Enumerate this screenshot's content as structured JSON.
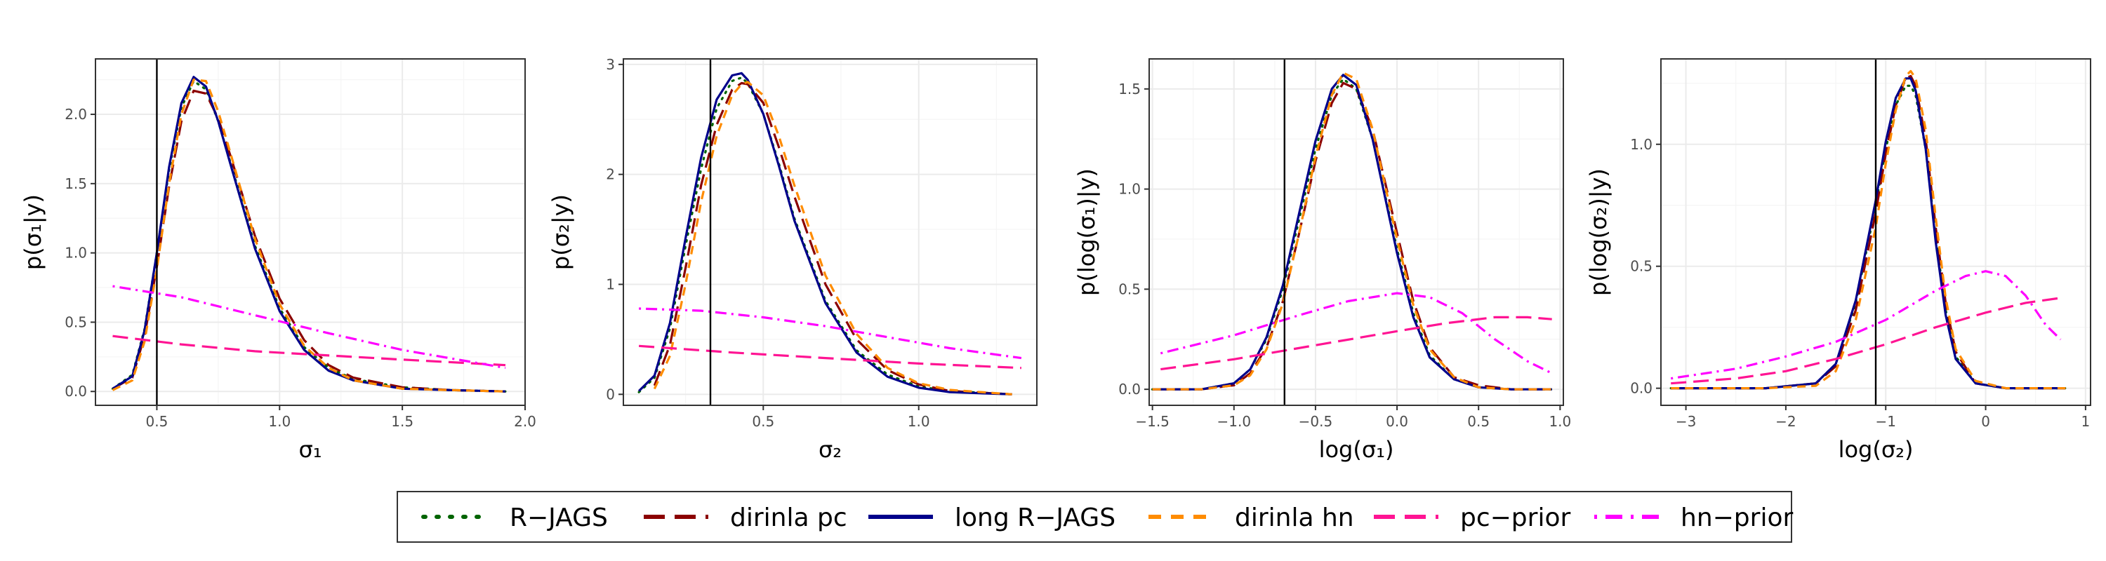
{
  "chart_data": [
    {
      "type": "line",
      "xlabel": "σ₁",
      "ylabel": "p(σ₁|y)",
      "xlim": [
        0.25,
        2.0
      ],
      "ylim": [
        -0.1,
        2.4
      ],
      "xticks": [
        0.5,
        1.0,
        1.5,
        2.0
      ],
      "xtick_labels": [
        "0.5",
        "1.0",
        "1.5",
        "2.0"
      ],
      "yticks": [
        0.0,
        0.5,
        1.0,
        1.5,
        2.0
      ],
      "ytick_labels": [
        "0.0",
        "0.5",
        "1.0",
        "1.5",
        "2.0"
      ],
      "vline": 0.5,
      "grid": true,
      "series": [
        {
          "name": "R−JAGS",
          "x": [
            0.32,
            0.4,
            0.45,
            0.5,
            0.55,
            0.6,
            0.65,
            0.7,
            0.75,
            0.8,
            0.9,
            1.0,
            1.1,
            1.2,
            1.3,
            1.5,
            1.7,
            1.92
          ],
          "y": [
            0.02,
            0.12,
            0.45,
            1.0,
            1.6,
            2.05,
            2.24,
            2.18,
            1.95,
            1.65,
            1.05,
            0.6,
            0.32,
            0.17,
            0.09,
            0.03,
            0.01,
            0.0
          ]
        },
        {
          "name": "dirinla pc",
          "x": [
            0.32,
            0.4,
            0.45,
            0.5,
            0.55,
            0.6,
            0.65,
            0.7,
            0.75,
            0.8,
            0.9,
            1.0,
            1.1,
            1.2,
            1.3,
            1.5,
            1.7,
            1.92
          ],
          "y": [
            0.02,
            0.1,
            0.4,
            0.9,
            1.48,
            1.95,
            2.17,
            2.15,
            1.97,
            1.7,
            1.12,
            0.67,
            0.37,
            0.19,
            0.1,
            0.03,
            0.01,
            0.0
          ]
        },
        {
          "name": "long R−JAGS",
          "x": [
            0.32,
            0.4,
            0.45,
            0.5,
            0.55,
            0.6,
            0.65,
            0.7,
            0.75,
            0.8,
            0.9,
            1.0,
            1.1,
            1.2,
            1.3,
            1.5,
            1.7,
            1.92
          ],
          "y": [
            0.02,
            0.11,
            0.44,
            1.0,
            1.62,
            2.08,
            2.27,
            2.2,
            1.95,
            1.64,
            1.03,
            0.58,
            0.3,
            0.15,
            0.08,
            0.02,
            0.01,
            0.0
          ]
        },
        {
          "name": "dirinla hn",
          "x": [
            0.32,
            0.4,
            0.45,
            0.5,
            0.55,
            0.6,
            0.65,
            0.7,
            0.75,
            0.8,
            0.9,
            1.0,
            1.1,
            1.2,
            1.3,
            1.5,
            1.7,
            1.92
          ],
          "y": [
            0.01,
            0.08,
            0.36,
            0.88,
            1.5,
            2.0,
            2.25,
            2.24,
            2.02,
            1.72,
            1.1,
            0.63,
            0.33,
            0.17,
            0.08,
            0.02,
            0.01,
            0.0
          ]
        },
        {
          "name": "pc−prior",
          "x": [
            0.32,
            0.6,
            0.9,
            1.2,
            1.5,
            1.92
          ],
          "y": [
            0.4,
            0.34,
            0.29,
            0.26,
            0.23,
            0.19
          ]
        },
        {
          "name": "hn−prior",
          "x": [
            0.32,
            0.6,
            0.9,
            1.2,
            1.5,
            1.92
          ],
          "y": [
            0.76,
            0.68,
            0.55,
            0.42,
            0.3,
            0.17
          ]
        }
      ]
    },
    {
      "type": "line",
      "xlabel": "σ₂",
      "ylabel": "p(σ₂|y)",
      "xlim": [
        0.05,
        1.38
      ],
      "ylim": [
        -0.1,
        3.05
      ],
      "xticks": [
        0.5,
        1.0
      ],
      "xtick_labels": [
        "0.5",
        "1.0"
      ],
      "yticks": [
        0,
        1,
        2,
        3
      ],
      "ytick_labels": [
        "0",
        "1",
        "2",
        "3"
      ],
      "vline": 0.33,
      "grid": true,
      "series": [
        {
          "name": "R−JAGS",
          "x": [
            0.1,
            0.15,
            0.2,
            0.25,
            0.3,
            0.35,
            0.4,
            0.43,
            0.45,
            0.5,
            0.55,
            0.6,
            0.7,
            0.8,
            0.9,
            1.0,
            1.1,
            1.3
          ],
          "y": [
            0.02,
            0.15,
            0.6,
            1.35,
            2.05,
            2.6,
            2.85,
            2.88,
            2.83,
            2.55,
            2.1,
            1.6,
            0.85,
            0.4,
            0.18,
            0.07,
            0.03,
            0.0
          ]
        },
        {
          "name": "dirinla pc",
          "x": [
            0.15,
            0.2,
            0.25,
            0.3,
            0.35,
            0.4,
            0.43,
            0.45,
            0.5,
            0.55,
            0.6,
            0.7,
            0.8,
            0.9,
            1.0,
            1.1,
            1.3
          ],
          "y": [
            0.08,
            0.45,
            1.15,
            1.9,
            2.45,
            2.77,
            2.83,
            2.82,
            2.65,
            2.25,
            1.8,
            1.0,
            0.5,
            0.22,
            0.09,
            0.03,
            0.0
          ]
        },
        {
          "name": "long R−JAGS",
          "x": [
            0.1,
            0.15,
            0.2,
            0.25,
            0.3,
            0.35,
            0.4,
            0.43,
            0.45,
            0.5,
            0.55,
            0.6,
            0.7,
            0.8,
            0.9,
            1.0,
            1.1,
            1.3
          ],
          "y": [
            0.03,
            0.17,
            0.65,
            1.42,
            2.15,
            2.68,
            2.9,
            2.92,
            2.86,
            2.55,
            2.08,
            1.58,
            0.83,
            0.38,
            0.16,
            0.06,
            0.02,
            0.0
          ]
        },
        {
          "name": "dirinla hn",
          "x": [
            0.15,
            0.2,
            0.25,
            0.3,
            0.35,
            0.4,
            0.43,
            0.45,
            0.5,
            0.55,
            0.6,
            0.7,
            0.8,
            0.9,
            1.0,
            1.1,
            1.3
          ],
          "y": [
            0.05,
            0.35,
            1.0,
            1.75,
            2.35,
            2.72,
            2.82,
            2.84,
            2.72,
            2.35,
            1.9,
            1.08,
            0.55,
            0.24,
            0.1,
            0.04,
            0.0
          ]
        },
        {
          "name": "pc−prior",
          "x": [
            0.1,
            0.4,
            0.7,
            1.0,
            1.33
          ],
          "y": [
            0.44,
            0.38,
            0.33,
            0.28,
            0.24
          ]
        },
        {
          "name": "hn−prior",
          "x": [
            0.1,
            0.3,
            0.5,
            0.7,
            0.9,
            1.1,
            1.33
          ],
          "y": [
            0.78,
            0.76,
            0.7,
            0.62,
            0.52,
            0.42,
            0.33
          ]
        }
      ]
    },
    {
      "type": "line",
      "xlabel": "log(σ₁)",
      "ylabel": "p(log(σ₁)|y)",
      "xlim": [
        -1.52,
        1.02
      ],
      "ylim": [
        -0.08,
        1.65
      ],
      "xticks": [
        -1.5,
        -1.0,
        -0.5,
        0.0,
        0.5,
        1.0
      ],
      "xtick_labels": [
        "−1.5",
        "−1.0",
        "−0.5",
        "0.0",
        "0.5",
        "1.0"
      ],
      "yticks": [
        0.0,
        0.5,
        1.0,
        1.5
      ],
      "ytick_labels": [
        "0.0",
        "0.5",
        "1.0",
        "1.5"
      ],
      "vline": -0.69,
      "grid": true,
      "series": [
        {
          "name": "R−JAGS",
          "x": [
            -1.5,
            -1.2,
            -1.0,
            -0.9,
            -0.8,
            -0.7,
            -0.6,
            -0.5,
            -0.4,
            -0.33,
            -0.25,
            -0.15,
            0.0,
            0.1,
            0.2,
            0.35,
            0.5,
            0.7,
            0.95
          ],
          "y": [
            0.0,
            0.0,
            0.03,
            0.1,
            0.25,
            0.5,
            0.85,
            1.2,
            1.47,
            1.55,
            1.5,
            1.25,
            0.7,
            0.38,
            0.17,
            0.05,
            0.01,
            0.0,
            0.0
          ]
        },
        {
          "name": "dirinla pc",
          "x": [
            -1.5,
            -1.2,
            -1.0,
            -0.9,
            -0.8,
            -0.7,
            -0.6,
            -0.5,
            -0.4,
            -0.33,
            -0.25,
            -0.15,
            0.0,
            0.1,
            0.2,
            0.35,
            0.5,
            0.7,
            0.95
          ],
          "y": [
            0.0,
            0.0,
            0.02,
            0.08,
            0.21,
            0.44,
            0.78,
            1.14,
            1.43,
            1.53,
            1.5,
            1.3,
            0.78,
            0.44,
            0.21,
            0.06,
            0.02,
            0.0,
            0.0
          ]
        },
        {
          "name": "long R−JAGS",
          "x": [
            -1.5,
            -1.2,
            -1.0,
            -0.9,
            -0.8,
            -0.7,
            -0.6,
            -0.5,
            -0.4,
            -0.33,
            -0.25,
            -0.15,
            0.0,
            0.1,
            0.2,
            0.35,
            0.5,
            0.7,
            0.95
          ],
          "y": [
            0.0,
            0.0,
            0.03,
            0.1,
            0.26,
            0.52,
            0.88,
            1.24,
            1.5,
            1.57,
            1.52,
            1.25,
            0.68,
            0.36,
            0.16,
            0.05,
            0.01,
            0.0,
            0.0
          ]
        },
        {
          "name": "dirinla hn",
          "x": [
            -1.5,
            -1.2,
            -1.0,
            -0.9,
            -0.8,
            -0.7,
            -0.6,
            -0.5,
            -0.4,
            -0.33,
            -0.25,
            -0.15,
            0.0,
            0.1,
            0.2,
            0.35,
            0.5,
            0.7,
            0.95
          ],
          "y": [
            0.0,
            0.0,
            0.02,
            0.07,
            0.2,
            0.43,
            0.78,
            1.16,
            1.47,
            1.58,
            1.55,
            1.3,
            0.75,
            0.42,
            0.2,
            0.06,
            0.01,
            0.0,
            0.0
          ]
        },
        {
          "name": "pc−prior",
          "x": [
            -1.45,
            -1.0,
            -0.5,
            0.0,
            0.3,
            0.6,
            0.8,
            0.95
          ],
          "y": [
            0.1,
            0.15,
            0.22,
            0.29,
            0.33,
            0.36,
            0.36,
            0.35
          ]
        },
        {
          "name": "hn−prior",
          "x": [
            -1.45,
            -1.0,
            -0.6,
            -0.3,
            0.0,
            0.2,
            0.4,
            0.6,
            0.8,
            0.95
          ],
          "y": [
            0.18,
            0.27,
            0.37,
            0.44,
            0.48,
            0.46,
            0.38,
            0.25,
            0.14,
            0.08
          ]
        }
      ]
    },
    {
      "type": "line",
      "xlabel": "log(σ₂)",
      "ylabel": "p(log(σ₂)|y)",
      "xlim": [
        -3.25,
        1.05
      ],
      "ylim": [
        -0.07,
        1.35
      ],
      "xticks": [
        -3,
        -2,
        -1,
        0,
        1
      ],
      "xtick_labels": [
        "−3",
        "−2",
        "−1",
        "0",
        "1"
      ],
      "yticks": [
        0.0,
        0.5,
        1.0
      ],
      "ytick_labels": [
        "0.0",
        "0.5",
        "1.0"
      ],
      "vline": -1.1,
      "grid": true,
      "series": [
        {
          "name": "R−JAGS",
          "x": [
            -3.15,
            -2.2,
            -1.7,
            -1.5,
            -1.3,
            -1.1,
            -1.0,
            -0.9,
            -0.8,
            -0.75,
            -0.7,
            -0.6,
            -0.5,
            -0.4,
            -0.3,
            -0.1,
            0.2,
            0.8
          ],
          "y": [
            0.0,
            0.0,
            0.02,
            0.1,
            0.35,
            0.75,
            0.98,
            1.16,
            1.24,
            1.24,
            1.2,
            0.98,
            0.62,
            0.32,
            0.13,
            0.02,
            0.0,
            0.0
          ]
        },
        {
          "name": "dirinla pc",
          "x": [
            -3.15,
            -2.2,
            -1.7,
            -1.5,
            -1.3,
            -1.1,
            -1.0,
            -0.9,
            -0.8,
            -0.75,
            -0.7,
            -0.6,
            -0.5,
            -0.4,
            -0.3,
            -0.1,
            0.2,
            0.8
          ],
          "y": [
            0.0,
            0.0,
            0.02,
            0.09,
            0.32,
            0.72,
            0.96,
            1.16,
            1.27,
            1.28,
            1.24,
            1.02,
            0.66,
            0.35,
            0.15,
            0.02,
            0.0,
            0.0
          ]
        },
        {
          "name": "long R−JAGS",
          "x": [
            -3.15,
            -2.2,
            -1.7,
            -1.5,
            -1.3,
            -1.1,
            -1.0,
            -0.9,
            -0.8,
            -0.75,
            -0.7,
            -0.6,
            -0.5,
            -0.4,
            -0.3,
            -0.1,
            0.2,
            0.8
          ],
          "y": [
            0.0,
            0.0,
            0.02,
            0.1,
            0.36,
            0.77,
            1.01,
            1.19,
            1.27,
            1.27,
            1.22,
            0.98,
            0.6,
            0.3,
            0.12,
            0.02,
            0.0,
            0.0
          ]
        },
        {
          "name": "dirinla hn",
          "x": [
            -3.15,
            -2.2,
            -1.7,
            -1.5,
            -1.3,
            -1.1,
            -1.0,
            -0.9,
            -0.8,
            -0.75,
            -0.7,
            -0.6,
            -0.5,
            -0.4,
            -0.3,
            -0.1,
            0.2,
            0.8
          ],
          "y": [
            0.0,
            0.0,
            0.01,
            0.07,
            0.28,
            0.66,
            0.92,
            1.14,
            1.28,
            1.3,
            1.27,
            1.06,
            0.7,
            0.37,
            0.16,
            0.03,
            0.0,
            0.0
          ]
        },
        {
          "name": "pc−prior",
          "x": [
            -3.15,
            -2.5,
            -2.0,
            -1.5,
            -1.0,
            -0.5,
            0.0,
            0.4,
            0.75
          ],
          "y": [
            0.02,
            0.04,
            0.07,
            0.12,
            0.18,
            0.25,
            0.31,
            0.35,
            0.37
          ]
        },
        {
          "name": "hn−prior",
          "x": [
            -3.15,
            -2.5,
            -2.0,
            -1.5,
            -1.0,
            -0.5,
            -0.2,
            0.0,
            0.2,
            0.4,
            0.6,
            0.75
          ],
          "y": [
            0.04,
            0.08,
            0.13,
            0.19,
            0.28,
            0.4,
            0.46,
            0.48,
            0.46,
            0.38,
            0.26,
            0.2
          ]
        }
      ]
    }
  ],
  "legend": {
    "placement": "bottom",
    "entries": [
      {
        "label": "R−JAGS",
        "color": "#006400",
        "dash": "dotted"
      },
      {
        "label": "dirinla pc",
        "color": "#8B0000",
        "dash": "longdash"
      },
      {
        "label": "long R−JAGS",
        "color": "#00008B",
        "dash": "solid"
      },
      {
        "label": "dirinla hn",
        "color": "#FF8C00",
        "dash": "dashed"
      },
      {
        "label": "pc−prior",
        "color": "#FF1493",
        "dash": "longdash"
      },
      {
        "label": "hn−prior",
        "color": "#FF00FF",
        "dash": "dotdash"
      }
    ]
  },
  "colors": {
    "panel_border": "#333333",
    "grid_major": "#ebebeb",
    "grid_minor": "#f5f5f5",
    "vline": "#000000"
  }
}
